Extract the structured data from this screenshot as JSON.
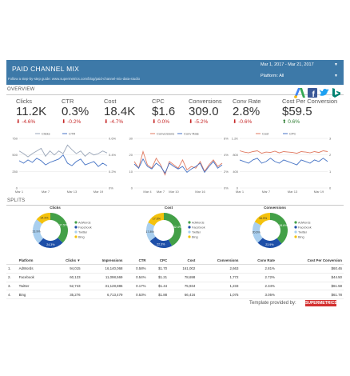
{
  "header": {
    "title": "PAID CHANNEL MIX",
    "subtitle": "Follow a step-by-step guide: www.supermetrics.com/blog/paid-channel-mix-data-studio",
    "date_range": "Mar 1, 2017 - Mar 21, 2017",
    "platform": "Platform: All",
    "dropdown_arrow": "▼"
  },
  "sections": {
    "overview": "OVERVIEW",
    "splits": "SPLITS"
  },
  "kpis": [
    {
      "label": "Clicks",
      "value": "11.2K",
      "change": "-4.6%",
      "direction": "down"
    },
    {
      "label": "CTR",
      "value": "0.3%",
      "change": "-0.2%",
      "direction": "down"
    },
    {
      "label": "Cost",
      "value": "18.4K",
      "change": "-4.7%",
      "direction": "down"
    },
    {
      "label": "CPC",
      "value": "$1.6",
      "change": "0.0%",
      "direction": "down"
    },
    {
      "label": "Conversions",
      "value": "309.0",
      "change": "-5.2%",
      "direction": "down"
    },
    {
      "label": "Conv Rate",
      "value": "2.8%",
      "change": "-0.6%",
      "direction": "down"
    },
    {
      "label": "Cost Per Conversion",
      "value": "$59.5",
      "change": "0.6%",
      "direction": "up"
    }
  ],
  "arrows": {
    "down": "⬇",
    "up": "⬆"
  },
  "platform_icons": [
    "adwords-icon",
    "facebook-icon",
    "twitter-icon",
    "bing-icon"
  ],
  "colors": {
    "header": "#3d79a8",
    "line1": "#4472c4",
    "line2": "#9aa6b8",
    "line3": "#e07b62",
    "adwords": "#43a047",
    "facebook": "#1e4fa8",
    "twitter": "#a9cfef",
    "bing": "#f4c20d"
  },
  "chart_data": [
    {
      "type": "line",
      "legend": [
        "Clicks",
        "CTR"
      ],
      "x": [
        "Mar 1",
        "Mar 2",
        "Mar 3",
        "Mar 4",
        "Mar 5",
        "Mar 6",
        "Mar 7",
        "Mar 8",
        "Mar 9",
        "Mar 10",
        "Mar 11",
        "Mar 12",
        "Mar 13",
        "Mar 14",
        "Mar 15",
        "Mar 16",
        "Mar 17",
        "Mar 18",
        "Mar 19",
        "Mar 20",
        "Mar 21"
      ],
      "xticks": [
        "Mar 1",
        "Mar 7",
        "Mar 13",
        "Mar 19"
      ],
      "yleft": {
        "ticks": [
          "750",
          "500",
          "250",
          "0"
        ],
        "ylim": [
          0,
          750
        ]
      },
      "yright": {
        "ticks": [
          "0.6%",
          "0.4%",
          "0.2%",
          "0%"
        ],
        "ylim": [
          0,
          0.6
        ]
      },
      "series": [
        {
          "name": "Clicks",
          "axis": "left",
          "values": [
            560,
            520,
            470,
            520,
            560,
            600,
            480,
            560,
            500,
            560,
            520,
            650,
            580,
            520,
            560,
            480,
            540,
            500,
            520,
            560,
            530
          ]
        },
        {
          "name": "CTR",
          "axis": "right",
          "values": [
            0.33,
            0.3,
            0.34,
            0.31,
            0.36,
            0.33,
            0.28,
            0.31,
            0.33,
            0.35,
            0.4,
            0.3,
            0.27,
            0.32,
            0.35,
            0.28,
            0.3,
            0.32,
            0.26,
            0.3,
            0.27
          ]
        }
      ]
    },
    {
      "type": "line",
      "legend": [
        "Conversions",
        "Conv Rate"
      ],
      "x": [
        "Mar 1",
        "Mar 2",
        "Mar 3",
        "Mar 4",
        "Mar 5",
        "Mar 6",
        "Mar 7",
        "Mar 8",
        "Mar 9",
        "Mar 10",
        "Mar 11",
        "Mar 12",
        "Mar 13",
        "Mar 14",
        "Mar 15",
        "Mar 16",
        "Mar 17",
        "Mar 18",
        "Mar 19",
        "Mar 20",
        "Mar 21"
      ],
      "xticks": [
        "Mar 4",
        "Mar 7",
        "Mar 10",
        "Mar 16"
      ],
      "yleft": {
        "ticks": [
          "30",
          "20",
          "10",
          "0"
        ],
        "ylim": [
          0,
          30
        ]
      },
      "yright": {
        "ticks": [
          "6%",
          "4%",
          "2%",
          "0%"
        ],
        "ylim": [
          0,
          6
        ]
      },
      "series": [
        {
          "name": "Conversions",
          "axis": "left",
          "values": [
            16,
            12,
            22,
            14,
            12,
            18,
            14,
            8,
            16,
            14,
            12,
            17,
            11,
            13,
            12,
            16,
            10,
            14,
            17,
            13,
            15
          ]
        },
        {
          "name": "Conv Rate",
          "axis": "right",
          "values": [
            2.9,
            2.4,
            3.5,
            2.6,
            2.3,
            3.0,
            2.6,
            1.8,
            3.0,
            2.6,
            2.3,
            2.6,
            1.9,
            2.3,
            2.6,
            3.0,
            1.9,
            2.6,
            3.2,
            2.4,
            2.8
          ]
        }
      ]
    },
    {
      "type": "line",
      "legend": [
        "Cost",
        "CPC"
      ],
      "x": [
        "Mar 1",
        "Mar 2",
        "Mar 3",
        "Mar 4",
        "Mar 5",
        "Mar 6",
        "Mar 7",
        "Mar 8",
        "Mar 9",
        "Mar 10",
        "Mar 11",
        "Mar 12",
        "Mar 13",
        "Mar 14",
        "Mar 15",
        "Mar 16",
        "Mar 17",
        "Mar 18",
        "Mar 19",
        "Mar 20",
        "Mar 21"
      ],
      "xticks": [
        "Mar 1",
        "Mar 7",
        "Mar 13",
        "Mar 19"
      ],
      "yleft": {
        "ticks": [
          "1.2K",
          "800",
          "400",
          "0"
        ],
        "ylim": [
          0,
          1200
        ]
      },
      "yright": {
        "ticks": [
          "3",
          "2",
          "1",
          "0"
        ],
        "ylim": [
          0,
          3
        ]
      },
      "series": [
        {
          "name": "Cost",
          "axis": "left",
          "values": [
            900,
            870,
            850,
            880,
            900,
            840,
            870,
            860,
            890,
            850,
            880,
            870,
            860,
            840,
            880,
            870,
            850,
            880,
            860,
            900,
            880
          ]
        },
        {
          "name": "CPC",
          "axis": "right",
          "values": [
            1.7,
            1.6,
            1.5,
            1.7,
            1.8,
            1.5,
            1.6,
            1.8,
            1.6,
            1.5,
            1.7,
            1.6,
            1.5,
            1.4,
            1.7,
            1.6,
            1.5,
            1.7,
            1.6,
            1.8,
            1.6
          ]
        }
      ]
    },
    {
      "type": "pie",
      "title": "Clicks",
      "labels": [
        "AdWords",
        "Facebook",
        "Twitter",
        "Bing"
      ],
      "values": [
        37.5,
        24.3,
        23.9,
        14.3
      ],
      "slice_labels": [
        "37.5%",
        "24.3%",
        "23.9%",
        "14.3%"
      ]
    },
    {
      "type": "pie",
      "title": "Cost",
      "labels": [
        "AdWords",
        "Facebook",
        "Twitter",
        "Bing"
      ],
      "values": [
        42.4,
        22.3,
        17.8,
        17.6
      ],
      "slice_labels": [
        "42.4%",
        "22.3%",
        "17.8%",
        "17.6%"
      ]
    },
    {
      "type": "pie",
      "title": "Conversions",
      "labels": [
        "AdWords",
        "Facebook",
        "Twitter",
        "Bing"
      ],
      "values": [
        38.6,
        23.9,
        20.6,
        16.9
      ],
      "slice_labels": [
        "38.6%",
        "23.9%",
        "20.6%",
        "16.9%"
      ]
    },
    {
      "type": "table",
      "columns": [
        "",
        "Platform",
        "Clicks ▼",
        "Impressions",
        "CTR",
        "CPC",
        "Cost",
        "Conversions",
        "Conv Rate",
        "Cost Per Conversion"
      ],
      "rows": [
        [
          "1.",
          "AdWords",
          "94,015",
          "16,140,068",
          "0.58%",
          "$1.70",
          "161,002",
          "2,663",
          "2.81%",
          "$60.46"
        ],
        [
          "2.",
          "Facebook",
          "60,123",
          "11,098,569",
          "0.54%",
          "$1.21",
          "78,698",
          "1,772",
          "2.72%",
          "$44.50"
        ],
        [
          "3.",
          "Twitter",
          "52,743",
          "31,128,886",
          "0.17%",
          "$1.44",
          "75,934",
          "1,233",
          "2.34%",
          "$61.58"
        ],
        [
          "4.",
          "Bing",
          "35,276",
          "6,713,479",
          "0.53%",
          "$1.88",
          "66,416",
          "1,075",
          "3.05%",
          "$61.78"
        ]
      ]
    }
  ],
  "footer": {
    "text": "Template provided by:",
    "brand": "SUPERMETRICS"
  }
}
